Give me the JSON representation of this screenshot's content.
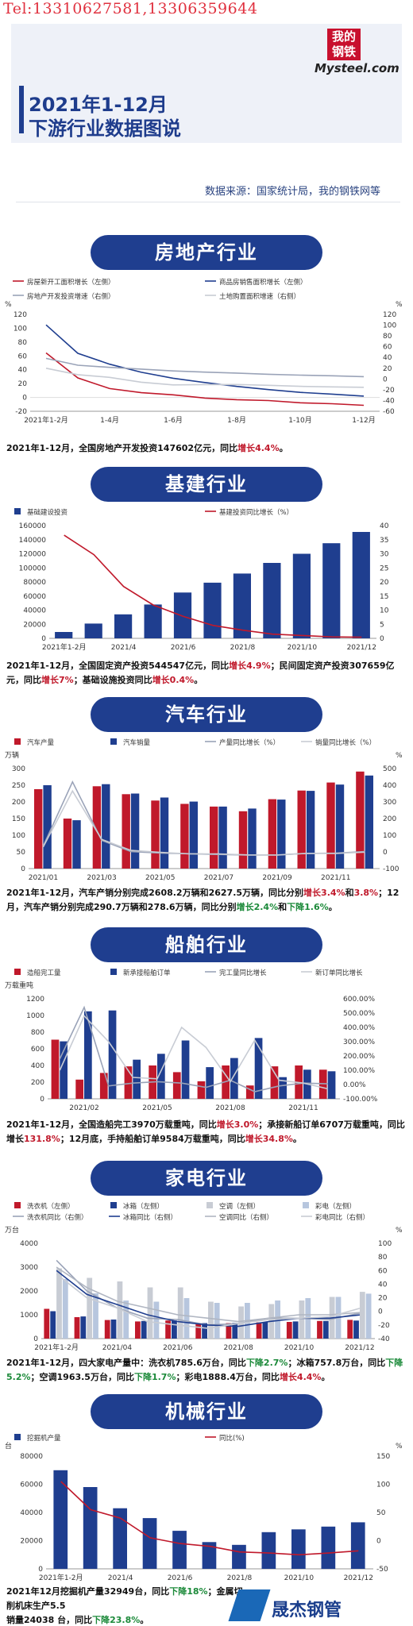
{
  "header": {
    "phone": "Tel:13310627581,13306359644",
    "title_line1": "2021年1-12月",
    "title_line2": "下游行业数据图说",
    "logo_line1": "我的",
    "logo_line2": "钢铁",
    "logo_text": "Mysteel.com",
    "source": "数据来源：国家统计局，我的钢铁网等"
  },
  "sections": {
    "realestate": {
      "title": "房地产行业",
      "summary_pre": "2021年1-12月，全国房地产开发投资147602亿元，同比",
      "summary_hl": "增长4.4%",
      "summary_post": "。"
    },
    "infra": {
      "title": "基建行业",
      "summary_p1": "2021年1-12月，全国固定资产投资544547亿元，同比",
      "summary_h1": "增长4.9%",
      "summary_p2": "；民间固定资产投资307659亿元，同比",
      "summary_h2": "增长7%",
      "summary_p3": "；基础设施投资同比",
      "summary_h3": "增长0.4%",
      "summary_p4": "。"
    },
    "auto": {
      "title": "汽车行业",
      "summary_p1": "2021年1-12月，汽车产销分别完成2608.2万辆和2627.5万辆，同比分别",
      "summary_h1": "增长3.4%",
      "summary_p2": "和",
      "summary_h2": "3.8%",
      "summary_p3": "；12月，汽车产销分别完成290.7万辆和278.6万辆，同比分别",
      "summary_h3": "增长2.4%",
      "summary_p4": "和",
      "summary_h4": "下降1.6%",
      "summary_p5": "。"
    },
    "ship": {
      "title": "船舶行业",
      "summary_p1": "2021年1-12月，全国造船完工3970万载重吨，同比",
      "summary_h1": "增长3.0%",
      "summary_p2": "；承接新船订单6707万载重吨，同比增长",
      "summary_h2": "131.8%",
      "summary_p3": "；12月底，手持船舶订单9584万载重吨，同比",
      "summary_h3": "增长34.8%",
      "summary_p4": "。"
    },
    "appliance": {
      "title": "家电行业",
      "summary_p1": "2021年1-12月，四大家电产量中：洗衣机785.6万台，同比",
      "summary_h1": "下降2.7%",
      "summary_p2": "；冰箱757.8万台，同比",
      "summary_h2": "下降5.2%",
      "summary_p3": "；空调1963.5万台，同比",
      "summary_h3": "下降1.7%",
      "summary_p4": "；彩电1888.4万台，同比",
      "summary_h4": "增长4.4%",
      "summary_p5": "。"
    },
    "machine": {
      "title": "机械行业",
      "summary_p1": "2021年12月挖掘机产量32949台，同比",
      "summary_h1": "下降18%",
      "summary_p2": "；金属切削机床生产5.5",
      "summary_p3": "销量24038 台，同比",
      "summary_h3": "下降23.8%",
      "summary_p4": "。"
    }
  },
  "watermark": {
    "text": "晟杰钢管",
    "icon": "steel-pipe-logo-icon"
  },
  "colors": {
    "navy": "#1f3e8f",
    "red": "#c0192b",
    "grayline": "#9aa3b8",
    "lightgray": "#c8ccd4",
    "text": "#111111"
  },
  "chart_data": [
    {
      "id": "realestate",
      "type": "line",
      "x": [
        "2021年1-2月",
        "2021年1-3月",
        "2021年1-4月",
        "2021年1-5月",
        "2021年1-6月",
        "2021年1-7月",
        "2021年1-8月",
        "2021年1-9月",
        "2021年1-10月",
        "2021年1-11月",
        "2021年1-12月"
      ],
      "xticks": [
        "2021年1-2月",
        "1-4月",
        "1-6月",
        "1-8月",
        "1-10月",
        "1-12月"
      ],
      "xtick_index": [
        0,
        2,
        4,
        6,
        8,
        10
      ],
      "yleft_unit": "%",
      "yright_unit": "%",
      "yleft": [
        -20,
        120
      ],
      "yleft_ticks": [
        -20,
        0,
        20,
        40,
        60,
        80,
        100,
        120
      ],
      "yright": [
        -60,
        120
      ],
      "yright_ticks": [
        -60,
        -40,
        -20,
        0,
        20,
        40,
        60,
        80,
        100,
        120
      ],
      "legend": [
        "房屋新开工面积增长（左侧）",
        "商品房销售面积增长（左侧）",
        "房地产开发投资增速（右侧）",
        "土地购置面积增速（右侧）"
      ],
      "series": [
        {
          "name": "房屋新开工面积增长（左侧）",
          "axis": "left",
          "color": "#c0192b",
          "values": [
            64.3,
            28.2,
            12.8,
            6.9,
            3.8,
            -0.9,
            -3.2,
            -4.5,
            -7.7,
            -9.1,
            -11.4
          ]
        },
        {
          "name": "商品房销售面积增长（左侧）",
          "axis": "left",
          "color": "#1f3e8f",
          "values": [
            104.9,
            63.8,
            48.1,
            36.3,
            27.7,
            21.5,
            15.9,
            11.3,
            7.3,
            4.8,
            1.9
          ]
        },
        {
          "name": "房地产开发投资增速（右侧）",
          "axis": "right",
          "color": "#9aa3b8",
          "values": [
            38.3,
            25.6,
            21.6,
            18.3,
            15.0,
            12.7,
            10.9,
            8.8,
            7.2,
            6.0,
            4.4
          ]
        },
        {
          "name": "土地购置面积增速（右侧）",
          "axis": "right",
          "color": "#c8ccd4",
          "values": [
            20.0,
            8.0,
            3.0,
            -6.0,
            -11.0,
            -10.5,
            -10.3,
            -11.7,
            -13.6,
            -14.7,
            -15.5
          ]
        }
      ]
    },
    {
      "id": "infra",
      "type": "bar",
      "x": [
        "2021年1-2月",
        "2021/3",
        "2021/4",
        "2021/5",
        "2021/6",
        "2021/7",
        "2021/8",
        "2021/9",
        "2021/10",
        "2021/11",
        "2021/12"
      ],
      "xticks": [
        "2021年1-2月",
        "2021/4",
        "2021/6",
        "2021/8",
        "2021/10",
        "2021/12"
      ],
      "xtick_index": [
        0,
        2,
        4,
        6,
        8,
        10
      ],
      "yleft": [
        0,
        160000
      ],
      "yleft_ticks": [
        0,
        20000,
        40000,
        60000,
        80000,
        100000,
        120000,
        140000,
        160000
      ],
      "yright": [
        0,
        40
      ],
      "yright_ticks": [
        0,
        5,
        10,
        15,
        20,
        25,
        30,
        35,
        40
      ],
      "legend": [
        "基础建设投资",
        "基建投资同比增长（%）"
      ],
      "series": [
        {
          "name": "基础建设投资",
          "axis": "left",
          "kind": "bar",
          "color": "#1f3e8f",
          "values": [
            9000,
            21000,
            34000,
            48000,
            65000,
            79000,
            92000,
            107000,
            120000,
            135000,
            151000
          ]
        },
        {
          "name": "基建投资同比增长（%）",
          "axis": "right",
          "kind": "line",
          "color": "#c0192b",
          "values": [
            36.6,
            29.7,
            18.4,
            11.8,
            7.8,
            4.6,
            2.9,
            1.5,
            1.0,
            0.5,
            0.4
          ]
        }
      ]
    },
    {
      "id": "auto",
      "type": "bar",
      "x": [
        "2021/01",
        "2021/02",
        "2021/03",
        "2021/04",
        "2021/05",
        "2021/06",
        "2021/07",
        "2021/08",
        "2021/09",
        "2021/10",
        "2021/11",
        "2021/12"
      ],
      "xticks": [
        "2021/01",
        "2021/03",
        "2021/05",
        "2021/07",
        "2021/09",
        "2021/11"
      ],
      "xtick_index": [
        0,
        2,
        4,
        6,
        8,
        10
      ],
      "yleft_unit": "万辆",
      "yright_unit": "%",
      "yleft": [
        0,
        300
      ],
      "yleft_ticks": [
        0,
        50,
        100,
        150,
        200,
        250,
        300
      ],
      "yright": [
        -100,
        500
      ],
      "yright_ticks": [
        -100,
        0,
        100,
        200,
        300,
        400,
        500
      ],
      "legend": [
        "汽车产量",
        "汽车销量",
        "产量同比增长（%）",
        "销量同比增长（%）"
      ],
      "series": [
        {
          "name": "汽车产量",
          "axis": "left",
          "kind": "bar",
          "color": "#c0192b",
          "values": [
            238,
            150,
            247,
            223,
            204,
            194,
            186,
            172,
            208,
            234,
            258,
            291
          ]
        },
        {
          "name": "汽车销量",
          "axis": "left",
          "kind": "bar",
          "color": "#1f3e8f",
          "values": [
            250,
            145,
            253,
            225,
            213,
            201,
            186,
            180,
            207,
            233,
            252,
            279
          ]
        },
        {
          "name": "产量同比增长（%）",
          "axis": "right",
          "kind": "line",
          "color": "#9aa3b8",
          "values": [
            34.6,
            420,
            69,
            2,
            -7,
            -11,
            -15,
            -19,
            -18,
            -9,
            -7,
            2.4
          ]
        },
        {
          "name": "销量同比增长（%）",
          "axis": "right",
          "kind": "line",
          "color": "#c8ccd4",
          "values": [
            29.5,
            365,
            75,
            9,
            -3,
            -12,
            -12,
            -18,
            -19,
            -9,
            -9,
            -1.6
          ]
        }
      ]
    },
    {
      "id": "ship",
      "type": "bar",
      "x": [
        "2021/01",
        "2021/02",
        "2021/03",
        "2021/04",
        "2021/05",
        "2021/06",
        "2021/07",
        "2021/08",
        "2021/09",
        "2021/10",
        "2021/11",
        "2021/12"
      ],
      "xticks": [
        "2021/02",
        "2021/05",
        "2021/08",
        "2021/11"
      ],
      "xtick_index": [
        1,
        4,
        7,
        10
      ],
      "yleft_unit": "万载重吨",
      "yleft": [
        0,
        1200
      ],
      "yleft_ticks": [
        0,
        200,
        400,
        600,
        800,
        1000,
        1200
      ],
      "yright": [
        -100,
        600
      ],
      "yright_ticks": [
        "-100.00%",
        "0.00%",
        "100.00%",
        "200.00%",
        "300.00%",
        "400.00%",
        "500.00%",
        "600.00%"
      ],
      "yright_values": [
        -100,
        0,
        100,
        200,
        300,
        400,
        500,
        600
      ],
      "legend": [
        "造船完工量",
        "新承接船舶订单",
        "完工量同比增长",
        "新订单同比增长"
      ],
      "series": [
        {
          "name": "造船完工量",
          "axis": "left",
          "kind": "bar",
          "color": "#c0192b",
          "values": [
            710,
            230,
            310,
            390,
            400,
            320,
            210,
            400,
            160,
            390,
            400,
            350
          ]
        },
        {
          "name": "新承接船舶订单",
          "axis": "left",
          "kind": "bar",
          "color": "#1f3e8f",
          "values": [
            690,
            1050,
            1060,
            470,
            540,
            700,
            380,
            490,
            730,
            260,
            350,
            330
          ]
        },
        {
          "name": "完工量同比增长",
          "axis": "right",
          "kind": "line",
          "color": "#9aa3b8",
          "values": [
            180,
            540,
            -10,
            10,
            20,
            10,
            -20,
            30,
            -50,
            -10,
            10,
            5
          ]
        },
        {
          "name": "新订单同比增长",
          "axis": "right",
          "kind": "line",
          "color": "#c8ccd4",
          "values": [
            100,
            480,
            300,
            50,
            40,
            400,
            260,
            20,
            310,
            30,
            10,
            -30
          ]
        }
      ]
    },
    {
      "id": "appliance",
      "type": "bar",
      "x": [
        "2021年1-2月",
        "2021/3",
        "2021/4",
        "2021/5",
        "2021/6",
        "2021/7",
        "2021/8",
        "2021/9",
        "2021/10",
        "2021/11",
        "2021/12"
      ],
      "xticks": [
        "2021年1-2月",
        "2021/04",
        "2021/06",
        "2021/08",
        "2021/10",
        "2021/12"
      ],
      "xtick_index": [
        0,
        2,
        4,
        6,
        8,
        10
      ],
      "yleft_unit": "万台",
      "yright_unit": "%",
      "yleft": [
        0,
        4000
      ],
      "yleft_ticks": [
        0,
        1000,
        2000,
        3000,
        4000
      ],
      "yright": [
        -40,
        100
      ],
      "yright_ticks": [
        -40,
        -20,
        0,
        20,
        40,
        60,
        80,
        100
      ],
      "legend": [
        "洗衣机（左侧）",
        "冰箱（左侧）",
        "空调（左侧）",
        "彩电（左侧）",
        "洗衣机同比（右侧）",
        "冰箱同比（右侧）",
        "空调同比（右侧）",
        "彩电同比（右侧）"
      ],
      "series": [
        {
          "name": "洗衣机（左侧）",
          "axis": "left",
          "kind": "bar",
          "color": "#c0192b",
          "values": [
            1250,
            900,
            780,
            720,
            760,
            620,
            650,
            680,
            700,
            740,
            786
          ]
        },
        {
          "name": "冰箱（左侧）",
          "axis": "left",
          "kind": "bar",
          "color": "#1f3e8f",
          "values": [
            1150,
            930,
            800,
            740,
            760,
            650,
            660,
            700,
            720,
            740,
            758
          ]
        },
        {
          "name": "空调（左侧）",
          "axis": "left",
          "kind": "bar",
          "color": "#c8ccd4",
          "values": [
            2950,
            2550,
            2400,
            2150,
            2150,
            1550,
            1350,
            1450,
            1600,
            1750,
            1964
          ]
        },
        {
          "name": "彩电（左侧）",
          "axis": "left",
          "kind": "bar",
          "color": "#b7c6de",
          "values": [
            2500,
            1900,
            1600,
            1550,
            1700,
            1500,
            1500,
            1600,
            1700,
            1750,
            1888
          ]
        },
        {
          "name": "洗衣机同比（右侧）",
          "axis": "right",
          "kind": "line",
          "color": "#9aa3b8",
          "values": [
            75,
            30,
            5,
            -10,
            -12,
            -20,
            -18,
            -10,
            -10,
            -12,
            -2.7
          ]
        },
        {
          "name": "冰箱同比（右侧）",
          "axis": "right",
          "kind": "line",
          "color": "#1f3e8f",
          "values": [
            60,
            25,
            10,
            -5,
            -15,
            -20,
            -22,
            -15,
            -10,
            -10,
            -5.2
          ]
        },
        {
          "name": "空调同比（右侧）",
          "axis": "right",
          "kind": "line",
          "color": "#b0b6c2",
          "values": [
            65,
            35,
            15,
            5,
            -5,
            -10,
            -15,
            -10,
            -5,
            -5,
            -1.7
          ]
        },
        {
          "name": "彩电同比（右侧）",
          "axis": "right",
          "kind": "line",
          "color": "#c8ccd4",
          "values": [
            55,
            20,
            5,
            -15,
            -20,
            -25,
            -18,
            -12,
            -10,
            -8,
            4.4
          ]
        }
      ]
    },
    {
      "id": "machine",
      "type": "bar",
      "x": [
        "2021年1-2月",
        "2021/3",
        "2021/4",
        "2021/5",
        "2021/6",
        "2021/7",
        "2021/8",
        "2021/9",
        "2021/10",
        "2021/11",
        "2021/12"
      ],
      "xticks": [
        "2021年1-2月",
        "2021/4",
        "2021/6",
        "2021/8",
        "2021/10",
        "2021/12"
      ],
      "xtick_index": [
        0,
        2,
        4,
        6,
        8,
        10
      ],
      "yleft_unit": "台",
      "yright_unit": "%",
      "yleft": [
        0,
        80000
      ],
      "yleft_ticks": [
        0,
        20000,
        40000,
        60000,
        80000
      ],
      "yright": [
        -50,
        150
      ],
      "yright_ticks": [
        -50,
        0,
        50,
        100,
        150
      ],
      "legend": [
        "挖掘机产量",
        "同比(%)"
      ],
      "series": [
        {
          "name": "挖掘机产量",
          "axis": "left",
          "kind": "bar",
          "color": "#1f3e8f",
          "values": [
            70000,
            58000,
            43000,
            36000,
            27000,
            19000,
            17000,
            26000,
            28000,
            30000,
            33000
          ]
        },
        {
          "name": "同比(%)",
          "axis": "right",
          "kind": "line",
          "color": "#c0192b",
          "values": [
            105,
            55,
            40,
            5,
            -5,
            -10,
            -20,
            -22,
            -25,
            -22,
            -18
          ]
        }
      ]
    }
  ]
}
